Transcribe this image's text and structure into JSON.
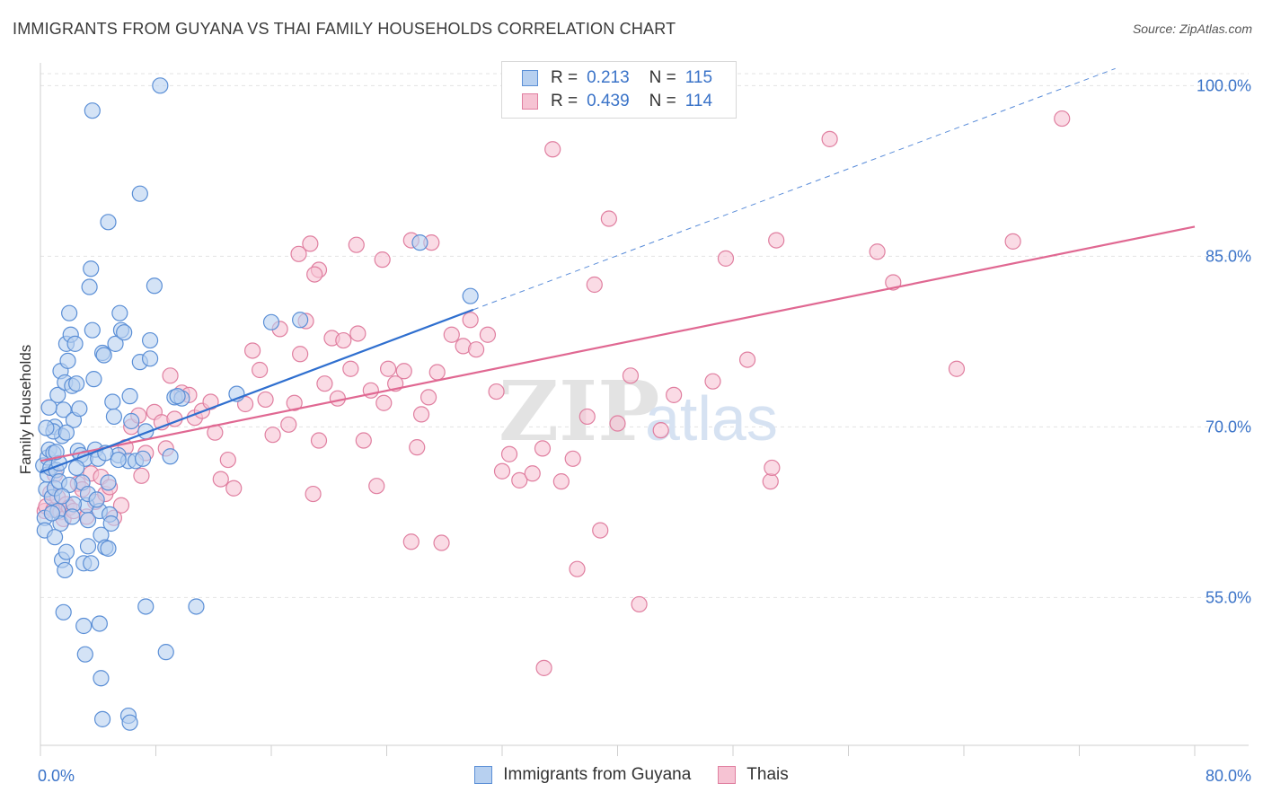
{
  "header": {
    "title": "IMMIGRANTS FROM GUYANA VS THAI FAMILY HOUSEHOLDS CORRELATION CHART",
    "source": "Source: ZipAtlas.com"
  },
  "legend_top": {
    "rows": [
      {
        "r_label": "R =",
        "r_value": "0.213",
        "n_label": "N =",
        "n_value": "115"
      },
      {
        "r_label": "R =",
        "r_value": "0.439",
        "n_label": "N =",
        "n_value": "114"
      }
    ]
  },
  "legend_bottom": {
    "series1": "Immigrants from Guyana",
    "series2": "Thais"
  },
  "watermark": {
    "zip": "ZIP",
    "atlas": "atlas"
  },
  "colors": {
    "blue_fill": "#b7d0f0",
    "blue_stroke": "#5b8fd6",
    "blue_line": "#2f6fcf",
    "pink_fill": "#f6c3d3",
    "pink_stroke": "#e07fa0",
    "pink_line": "#e06892",
    "tick_text": "#3a73c8",
    "grid": "#e3e3e3"
  },
  "chart_data": {
    "type": "scatter",
    "title": "IMMIGRANTS FROM GUYANA VS THAI FAMILY HOUSEHOLDS CORRELATION CHART",
    "xlabel": "",
    "ylabel": "Family Households",
    "xlim": [
      0,
      80
    ],
    "ylim": [
      42,
      102
    ],
    "x_tick_labels": [
      "0.0%",
      "80.0%"
    ],
    "y_ticks": [
      55,
      70,
      85,
      100
    ],
    "y_tick_labels": [
      "55.0%",
      "70.0%",
      "85.0%",
      "100.0%"
    ],
    "grid": true,
    "legend_position": "bottom",
    "series": [
      {
        "name": "Immigrants from Guyana",
        "r": 0.213,
        "n": 115,
        "trend": {
          "x": [
            0,
            30
          ],
          "y": [
            66.0,
            80.3
          ]
        },
        "trend_extension": {
          "x": [
            30,
            74.5
          ],
          "y": [
            80.3,
            101.5
          ]
        },
        "points": [
          [
            0.2,
            66.6
          ],
          [
            0.3,
            62.0
          ],
          [
            0.4,
            64.5
          ],
          [
            0.5,
            67.3
          ],
          [
            0.5,
            65.8
          ],
          [
            0.6,
            68.0
          ],
          [
            0.7,
            66.4
          ],
          [
            0.8,
            63.8
          ],
          [
            0.9,
            67.7
          ],
          [
            1.0,
            64.6
          ],
          [
            1.1,
            66.2
          ],
          [
            1.2,
            62.6
          ],
          [
            1.3,
            65.2
          ],
          [
            1.4,
            61.5
          ],
          [
            1.0,
            70.0
          ],
          [
            1.2,
            72.8
          ],
          [
            1.4,
            74.9
          ],
          [
            1.5,
            69.2
          ],
          [
            1.6,
            71.5
          ],
          [
            1.7,
            73.9
          ],
          [
            1.8,
            77.3
          ],
          [
            1.9,
            75.8
          ],
          [
            2.0,
            80.0
          ],
          [
            2.1,
            78.1
          ],
          [
            2.2,
            73.6
          ],
          [
            2.3,
            70.6
          ],
          [
            2.4,
            77.3
          ],
          [
            2.5,
            73.8
          ],
          [
            2.6,
            67.9
          ],
          [
            2.8,
            67.5
          ],
          [
            2.9,
            65.1
          ],
          [
            3.1,
            67.2
          ],
          [
            3.2,
            63.1
          ],
          [
            3.3,
            61.8
          ],
          [
            3.4,
            82.3
          ],
          [
            3.5,
            83.9
          ],
          [
            3.6,
            78.5
          ],
          [
            3.7,
            74.2
          ],
          [
            3.8,
            68.0
          ],
          [
            4.0,
            67.2
          ],
          [
            4.1,
            62.6
          ],
          [
            4.3,
            76.5
          ],
          [
            4.4,
            76.3
          ],
          [
            4.7,
            65.1
          ],
          [
            4.8,
            62.3
          ],
          [
            5.0,
            72.2
          ],
          [
            5.1,
            70.9
          ],
          [
            5.2,
            77.3
          ],
          [
            5.4,
            67.5
          ],
          [
            5.5,
            80.0
          ],
          [
            5.6,
            78.5
          ],
          [
            5.8,
            78.3
          ],
          [
            6.1,
            67.0
          ],
          [
            6.2,
            72.7
          ],
          [
            6.3,
            70.5
          ],
          [
            6.6,
            67.0
          ],
          [
            6.9,
            75.7
          ],
          [
            7.1,
            67.2
          ],
          [
            7.3,
            69.6
          ],
          [
            7.6,
            77.6
          ],
          [
            7.6,
            76.0
          ],
          [
            7.9,
            82.4
          ],
          [
            8.3,
            100.0
          ],
          [
            3.6,
            97.8
          ],
          [
            4.7,
            88.0
          ],
          [
            6.9,
            90.5
          ],
          [
            1.5,
            58.3
          ],
          [
            1.7,
            57.4
          ],
          [
            1.8,
            59.0
          ],
          [
            2.3,
            63.2
          ],
          [
            3.0,
            58.0
          ],
          [
            3.3,
            59.5
          ],
          [
            3.5,
            58.0
          ],
          [
            4.2,
            60.5
          ],
          [
            4.5,
            59.4
          ],
          [
            4.7,
            59.3
          ],
          [
            4.9,
            61.5
          ],
          [
            1.6,
            53.7
          ],
          [
            3.0,
            52.5
          ],
          [
            3.1,
            50.0
          ],
          [
            4.1,
            52.7
          ],
          [
            4.2,
            47.9
          ],
          [
            4.3,
            44.3
          ],
          [
            6.1,
            44.6
          ],
          [
            6.2,
            44.0
          ],
          [
            7.3,
            54.2
          ],
          [
            8.7,
            50.2
          ],
          [
            10.8,
            54.2
          ],
          [
            9.0,
            67.4
          ],
          [
            9.3,
            72.6
          ],
          [
            9.8,
            72.5
          ],
          [
            9.5,
            72.7
          ],
          [
            13.6,
            72.9
          ],
          [
            16.0,
            79.2
          ],
          [
            18.0,
            79.4
          ],
          [
            26.3,
            86.2
          ],
          [
            29.8,
            81.5
          ],
          [
            0.9,
            69.6
          ],
          [
            1.3,
            66.8
          ],
          [
            1.8,
            69.5
          ],
          [
            2.7,
            71.6
          ],
          [
            0.6,
            71.7
          ],
          [
            0.4,
            69.9
          ],
          [
            1.1,
            67.8
          ],
          [
            2.5,
            66.4
          ],
          [
            2.0,
            64.9
          ],
          [
            3.3,
            64.1
          ],
          [
            3.9,
            63.6
          ],
          [
            1.5,
            63.9
          ],
          [
            0.8,
            62.4
          ],
          [
            0.3,
            60.9
          ],
          [
            1.0,
            60.3
          ],
          [
            2.2,
            62.1
          ],
          [
            4.5,
            67.7
          ],
          [
            5.4,
            67.1
          ]
        ]
      },
      {
        "name": "Thais",
        "r": 0.439,
        "n": 114,
        "trend": {
          "x": [
            0,
            80
          ],
          "y": [
            67.0,
            87.6
          ]
        },
        "points": [
          [
            0.3,
            62.6
          ],
          [
            0.4,
            63.0
          ],
          [
            0.7,
            64.2
          ],
          [
            0.9,
            62.7
          ],
          [
            1.0,
            65.8
          ],
          [
            1.2,
            63.8
          ],
          [
            1.4,
            62.5
          ],
          [
            1.6,
            61.9
          ],
          [
            1.8,
            63.2
          ],
          [
            2.0,
            62.9
          ],
          [
            2.3,
            62.6
          ],
          [
            2.6,
            65.0
          ],
          [
            2.9,
            64.5
          ],
          [
            3.2,
            62.1
          ],
          [
            3.5,
            65.9
          ],
          [
            3.8,
            63.4
          ],
          [
            4.2,
            65.6
          ],
          [
            4.5,
            64.1
          ],
          [
            4.8,
            64.7
          ],
          [
            5.1,
            62.0
          ],
          [
            5.6,
            63.1
          ],
          [
            5.9,
            68.2
          ],
          [
            6.3,
            70.0
          ],
          [
            6.8,
            71.0
          ],
          [
            7.0,
            65.7
          ],
          [
            7.3,
            67.7
          ],
          [
            7.9,
            71.3
          ],
          [
            8.4,
            70.4
          ],
          [
            8.7,
            68.1
          ],
          [
            9.0,
            74.5
          ],
          [
            9.3,
            70.7
          ],
          [
            9.8,
            73.0
          ],
          [
            10.3,
            72.8
          ],
          [
            10.7,
            70.8
          ],
          [
            11.2,
            71.4
          ],
          [
            11.8,
            72.2
          ],
          [
            12.1,
            69.5
          ],
          [
            12.5,
            65.4
          ],
          [
            13.0,
            67.1
          ],
          [
            13.4,
            64.6
          ],
          [
            14.2,
            72.0
          ],
          [
            14.7,
            76.7
          ],
          [
            15.2,
            75.0
          ],
          [
            15.6,
            72.4
          ],
          [
            16.1,
            69.3
          ],
          [
            16.6,
            78.6
          ],
          [
            17.2,
            70.2
          ],
          [
            17.6,
            72.1
          ],
          [
            18.0,
            76.4
          ],
          [
            18.4,
            79.3
          ],
          [
            18.9,
            64.1
          ],
          [
            19.3,
            68.8
          ],
          [
            19.7,
            73.8
          ],
          [
            20.2,
            77.8
          ],
          [
            20.6,
            72.5
          ],
          [
            21.0,
            77.6
          ],
          [
            21.5,
            75.1
          ],
          [
            22.0,
            78.2
          ],
          [
            22.4,
            68.8
          ],
          [
            22.9,
            73.2
          ],
          [
            23.3,
            64.8
          ],
          [
            23.8,
            72.1
          ],
          [
            24.1,
            75.1
          ],
          [
            24.6,
            73.8
          ],
          [
            25.2,
            74.9
          ],
          [
            25.7,
            59.9
          ],
          [
            26.1,
            68.2
          ],
          [
            26.4,
            71.1
          ],
          [
            26.9,
            72.6
          ],
          [
            27.5,
            74.8
          ],
          [
            27.8,
            59.8
          ],
          [
            28.5,
            78.1
          ],
          [
            29.3,
            77.1
          ],
          [
            29.8,
            79.4
          ],
          [
            30.2,
            76.8
          ],
          [
            31.0,
            78.1
          ],
          [
            31.6,
            73.1
          ],
          [
            32.0,
            66.1
          ],
          [
            32.5,
            67.6
          ],
          [
            33.2,
            65.3
          ],
          [
            34.1,
            65.9
          ],
          [
            34.8,
            68.1
          ],
          [
            35.5,
            94.4
          ],
          [
            36.1,
            65.2
          ],
          [
            36.9,
            67.2
          ],
          [
            37.2,
            57.5
          ],
          [
            37.9,
            70.9
          ],
          [
            38.4,
            82.5
          ],
          [
            38.8,
            60.9
          ],
          [
            39.4,
            88.3
          ],
          [
            40.0,
            70.3
          ],
          [
            40.9,
            74.5
          ],
          [
            41.5,
            54.4
          ],
          [
            43.0,
            69.7
          ],
          [
            43.9,
            72.8
          ],
          [
            46.6,
            74.0
          ],
          [
            47.5,
            84.8
          ],
          [
            49.0,
            75.9
          ],
          [
            50.6,
            65.2
          ],
          [
            50.7,
            66.4
          ],
          [
            51.0,
            86.4
          ],
          [
            54.7,
            95.3
          ],
          [
            58.0,
            85.4
          ],
          [
            59.1,
            82.7
          ],
          [
            63.5,
            75.1
          ],
          [
            67.4,
            86.3
          ],
          [
            70.8,
            97.1
          ],
          [
            34.9,
            48.8
          ],
          [
            21.9,
            86.0
          ],
          [
            23.7,
            84.7
          ],
          [
            25.7,
            86.4
          ],
          [
            18.7,
            86.1
          ],
          [
            19.3,
            83.8
          ],
          [
            17.9,
            85.2
          ],
          [
            19.0,
            83.4
          ],
          [
            27.1,
            86.2
          ]
        ]
      }
    ]
  }
}
